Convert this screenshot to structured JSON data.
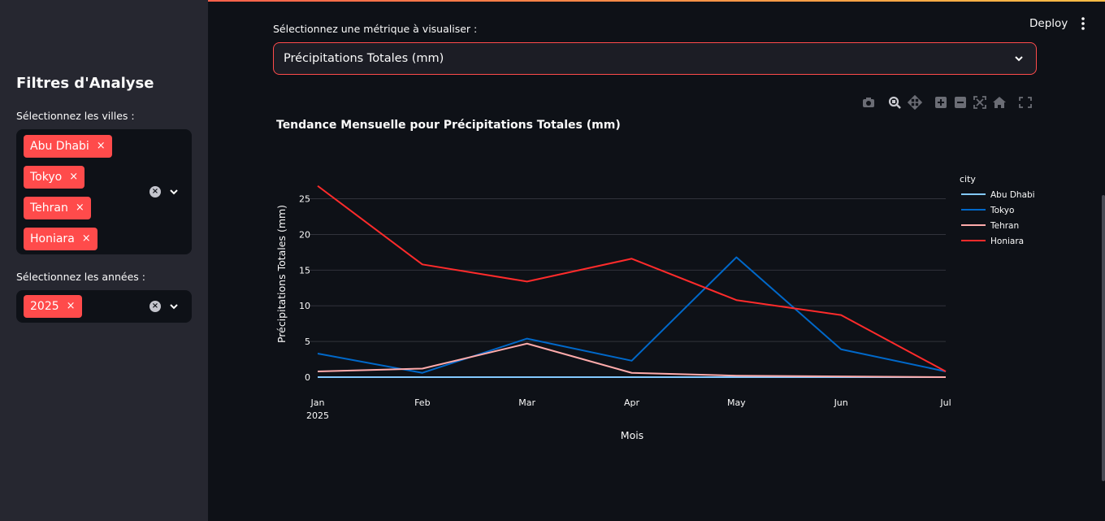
{
  "sidebar": {
    "title": "Filtres d'Analyse",
    "cities_label": "Sélectionnez les villes :",
    "cities": [
      "Abu Dhabi",
      "Tokyo",
      "Tehran",
      "Honiara"
    ],
    "years_label": "Sélectionnez les années :",
    "years": [
      "2025"
    ],
    "remove_glyph": "×",
    "clear_glyph": "×"
  },
  "header": {
    "deploy_label": "Deploy"
  },
  "main": {
    "metric_label": "Sélectionnez une métrique à visualiser :",
    "metric_value": "Précipitations Totales (mm)"
  },
  "modebar_icons": [
    "camera-icon",
    "zoom-icon",
    "pan-icon",
    "zoom-in-icon",
    "zoom-out-icon",
    "autoscale-icon",
    "home-icon",
    "fullscreen-icon"
  ],
  "colors": {
    "accent": "#ff4b4b",
    "sidebar_bg": "#262730",
    "app_bg": "#0e1117"
  },
  "chart_data": {
    "type": "line",
    "title": "Tendance Mensuelle pour Précipitations Totales (mm)",
    "xlabel": "Mois",
    "ylabel": "Précipitations Totales (mm)",
    "categories": [
      "Jan",
      "Feb",
      "Mar",
      "Apr",
      "May",
      "Jun",
      "Jul"
    ],
    "x_year_label": "2025",
    "ylim": [
      0,
      27
    ],
    "yticks": [
      0,
      5,
      10,
      15,
      20,
      25
    ],
    "legend_title": "city",
    "legend_position": "right",
    "grid": true,
    "series": [
      {
        "name": "Abu Dhabi",
        "color": "#83c9ff",
        "values": [
          0,
          0,
          0,
          0,
          0,
          0,
          0
        ]
      },
      {
        "name": "Tokyo",
        "color": "#0068c9",
        "values": [
          3.3,
          0.6,
          5.4,
          2.3,
          16.8,
          3.9,
          0.8
        ]
      },
      {
        "name": "Tehran",
        "color": "#ffabab",
        "values": [
          0.8,
          1.2,
          4.7,
          0.6,
          0.2,
          0.1,
          0.0
        ]
      },
      {
        "name": "Honiara",
        "color": "#ff2b2b",
        "values": [
          26.8,
          15.8,
          13.4,
          16.6,
          10.8,
          8.7,
          0.8
        ]
      }
    ]
  }
}
